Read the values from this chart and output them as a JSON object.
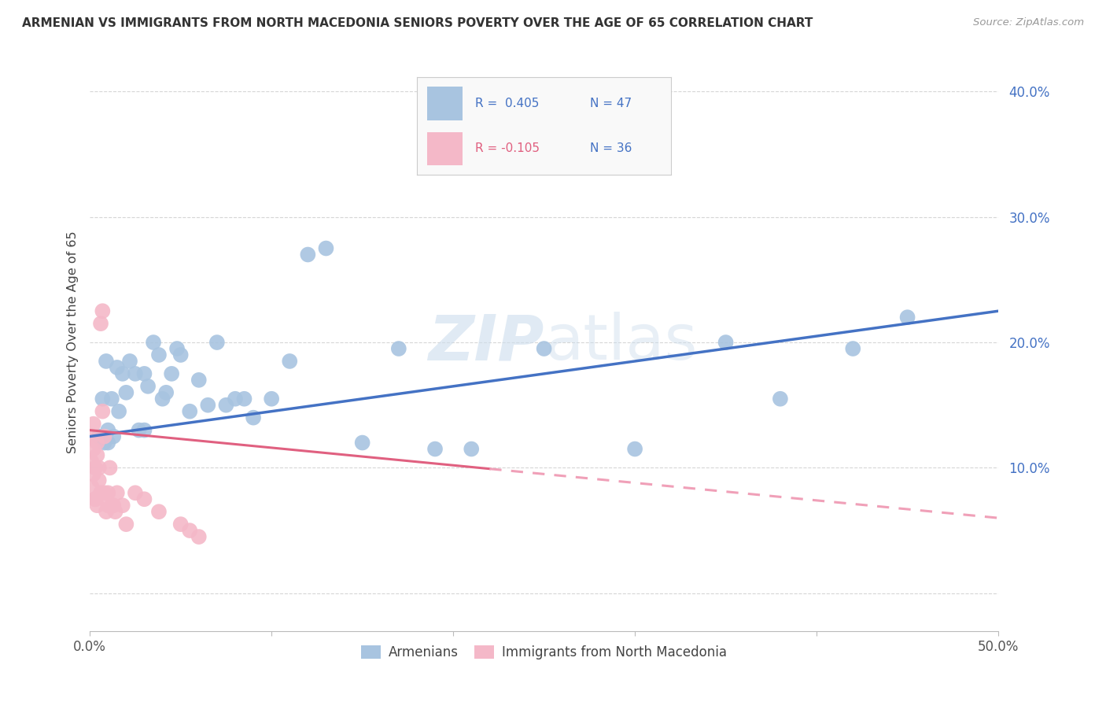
{
  "title": "ARMENIAN VS IMMIGRANTS FROM NORTH MACEDONIA SENIORS POVERTY OVER THE AGE OF 65 CORRELATION CHART",
  "source": "Source: ZipAtlas.com",
  "ylabel": "Seniors Poverty Over the Age of 65",
  "xlim": [
    0.0,
    0.5
  ],
  "ylim": [
    -0.03,
    0.43
  ],
  "yticks": [
    0.0,
    0.1,
    0.2,
    0.3,
    0.4
  ],
  "ytick_labels": [
    "",
    "10.0%",
    "20.0%",
    "30.0%",
    "40.0%"
  ],
  "xticks": [
    0.0,
    0.1,
    0.2,
    0.3,
    0.4,
    0.5
  ],
  "xtick_labels": [
    "0.0%",
    "",
    "",
    "",
    "",
    "50.0%"
  ],
  "legend_R1": "R =  0.405",
  "legend_N1": "N = 47",
  "legend_R2": "R = -0.105",
  "legend_N2": "N = 36",
  "color_armenian": "#a8c4e0",
  "color_macedonia": "#f4b8c8",
  "color_line_armenian": "#4472c4",
  "color_line_macedonia_solid": "#e06080",
  "color_line_macedonia_dash": "#f0a0b8",
  "watermark_color": "#ccdded",
  "armenian_x": [
    0.005,
    0.007,
    0.008,
    0.009,
    0.01,
    0.01,
    0.012,
    0.013,
    0.015,
    0.016,
    0.018,
    0.02,
    0.022,
    0.025,
    0.027,
    0.03,
    0.03,
    0.032,
    0.035,
    0.038,
    0.04,
    0.042,
    0.045,
    0.048,
    0.05,
    0.055,
    0.06,
    0.065,
    0.07,
    0.075,
    0.08,
    0.085,
    0.09,
    0.1,
    0.11,
    0.12,
    0.13,
    0.15,
    0.17,
    0.19,
    0.21,
    0.25,
    0.3,
    0.35,
    0.38,
    0.42,
    0.45
  ],
  "armenian_y": [
    0.125,
    0.155,
    0.12,
    0.185,
    0.12,
    0.13,
    0.155,
    0.125,
    0.18,
    0.145,
    0.175,
    0.16,
    0.185,
    0.175,
    0.13,
    0.175,
    0.13,
    0.165,
    0.2,
    0.19,
    0.155,
    0.16,
    0.175,
    0.195,
    0.19,
    0.145,
    0.17,
    0.15,
    0.2,
    0.15,
    0.155,
    0.155,
    0.14,
    0.155,
    0.185,
    0.27,
    0.275,
    0.12,
    0.195,
    0.115,
    0.115,
    0.195,
    0.115,
    0.2,
    0.155,
    0.195,
    0.22
  ],
  "macedonia_x": [
    0.001,
    0.001,
    0.001,
    0.002,
    0.002,
    0.002,
    0.003,
    0.003,
    0.003,
    0.004,
    0.004,
    0.004,
    0.005,
    0.005,
    0.006,
    0.006,
    0.007,
    0.007,
    0.008,
    0.008,
    0.009,
    0.01,
    0.01,
    0.011,
    0.012,
    0.013,
    0.014,
    0.015,
    0.018,
    0.02,
    0.025,
    0.03,
    0.038,
    0.05,
    0.055,
    0.06
  ],
  "macedonia_y": [
    0.125,
    0.105,
    0.085,
    0.135,
    0.115,
    0.095,
    0.075,
    0.075,
    0.1,
    0.12,
    0.11,
    0.07,
    0.1,
    0.09,
    0.08,
    0.215,
    0.225,
    0.145,
    0.125,
    0.08,
    0.065,
    0.08,
    0.07,
    0.1,
    0.07,
    0.07,
    0.065,
    0.08,
    0.07,
    0.055,
    0.08,
    0.075,
    0.065,
    0.055,
    0.05,
    0.045
  ],
  "line_armenian_x0": 0.0,
  "line_armenian_x1": 0.5,
  "line_armenian_y0": 0.125,
  "line_armenian_y1": 0.225,
  "line_macedonia_x0": 0.0,
  "line_macedonia_x1": 0.5,
  "line_macedonia_y0": 0.13,
  "line_macedonia_y1": 0.06,
  "line_macedonia_solid_end": 0.22
}
